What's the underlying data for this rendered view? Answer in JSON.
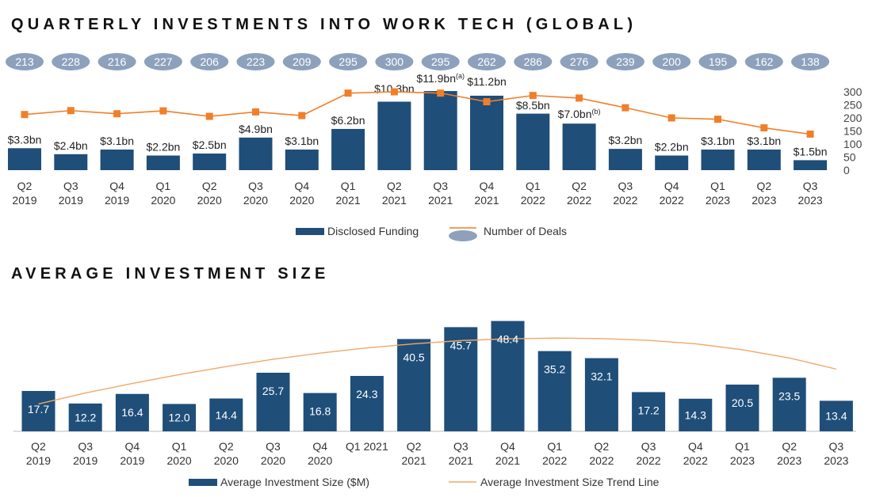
{
  "titles": {
    "top": "QUARTERLY INVESTMENTS INTO WORK TECH (GLOBAL)",
    "bottom": "AVERAGE INVESTMENT SIZE"
  },
  "colors": {
    "bar": "#1f4e79",
    "line": "#f07f2a",
    "ellipse": "#8da1bd",
    "trend": "#f0a868"
  },
  "chart_data": [
    {
      "type": "bar",
      "title": "QUARTERLY INVESTMENTS INTO WORK TECH (GLOBAL)",
      "categories": [
        [
          "Q2",
          "2019"
        ],
        [
          "Q3",
          "2019"
        ],
        [
          "Q4",
          "2019"
        ],
        [
          "Q1",
          "2020"
        ],
        [
          "Q2",
          "2020"
        ],
        [
          "Q3",
          "2020"
        ],
        [
          "Q4",
          "2020"
        ],
        [
          "Q1",
          "2021"
        ],
        [
          "Q2",
          "2021"
        ],
        [
          "Q3",
          "2021"
        ],
        [
          "Q4",
          "2021"
        ],
        [
          "Q1",
          "2022"
        ],
        [
          "Q2",
          "2022"
        ],
        [
          "Q3",
          "2022"
        ],
        [
          "Q4",
          "2022"
        ],
        [
          "Q1",
          "2023"
        ],
        [
          "Q2",
          "2023"
        ],
        [
          "Q3",
          "2023"
        ]
      ],
      "series": [
        {
          "name": "Disclosed Funding",
          "kind": "bar",
          "unit": "$bn",
          "values": [
            3.3,
            2.4,
            3.1,
            2.2,
            2.5,
            4.9,
            3.1,
            6.2,
            10.3,
            11.9,
            11.2,
            8.5,
            7.0,
            3.2,
            2.2,
            3.1,
            3.1,
            1.5
          ],
          "labels": [
            "$3.3bn",
            "$2.4bn",
            "$3.1bn",
            "$2.2bn",
            "$2.5bn",
            "$4.9bn",
            "$3.1bn",
            "$6.2bn",
            "$10.3bn",
            "$11.9bn",
            "$11.2bn",
            "$8.5bn",
            "$7.0bn",
            "$3.2bn",
            "$2.2bn",
            "$3.1bn",
            "$3.1bn",
            "$1.5bn"
          ],
          "label_notes": [
            "",
            "",
            "",
            "",
            "",
            "",
            "",
            "",
            "",
            "(a)",
            "",
            "",
            "(b)",
            "",
            "",
            "",
            "",
            ""
          ]
        },
        {
          "name": "Number of Deals",
          "kind": "line",
          "values": [
            213,
            228,
            216,
            227,
            206,
            223,
            209,
            295,
            300,
            295,
            262,
            286,
            276,
            239,
            200,
            195,
            162,
            138
          ]
        }
      ],
      "y_right_ticks": [
        "300",
        "250",
        "200",
        "150",
        "100",
        "50",
        "0"
      ],
      "y_right_range": [
        0,
        300
      ]
    },
    {
      "type": "bar",
      "title": "AVERAGE INVESTMENT SIZE",
      "categories": [
        [
          "Q2",
          "2019"
        ],
        [
          "Q3",
          "2019"
        ],
        [
          "Q4",
          "2019"
        ],
        [
          "Q1",
          "2020"
        ],
        [
          "Q2",
          "2020"
        ],
        [
          "Q3",
          "2020"
        ],
        [
          "Q4",
          "2020"
        ],
        [
          "Q1 2021"
        ],
        [
          "Q2",
          "2021"
        ],
        [
          "Q3",
          "2021"
        ],
        [
          "Q4",
          "2021"
        ],
        [
          "Q1",
          "2022"
        ],
        [
          "Q2",
          "2022"
        ],
        [
          "Q3",
          "2022"
        ],
        [
          "Q4",
          "2022"
        ],
        [
          "Q1",
          "2023"
        ],
        [
          "Q2",
          "2023"
        ],
        [
          "Q3",
          "2023"
        ]
      ],
      "series": [
        {
          "name": "Average Investment Size ($M)",
          "kind": "bar",
          "values": [
            17.7,
            12.2,
            16.4,
            12.0,
            14.4,
            25.7,
            16.8,
            24.3,
            40.5,
            45.7,
            48.4,
            35.2,
            32.1,
            17.2,
            14.3,
            20.5,
            23.5,
            13.4
          ],
          "labels": [
            "17.7",
            "12.2",
            "16.4",
            "12.0",
            "14.4",
            "25.7",
            "16.8",
            "24.3",
            "40.5",
            "45.7",
            "48.4",
            "35.2",
            "32.1",
            "17.2",
            "14.3",
            "20.5",
            "23.5",
            "13.4"
          ]
        },
        {
          "name": "Average Investment Size Trend Line",
          "kind": "trend",
          "values": [
            12.0,
            16.8,
            21.0,
            24.9,
            28.4,
            31.6,
            34.3,
            36.6,
            38.4,
            39.8,
            40.6,
            40.9,
            40.7,
            39.9,
            38.4,
            35.8,
            32.2,
            27.3
          ]
        }
      ]
    }
  ]
}
